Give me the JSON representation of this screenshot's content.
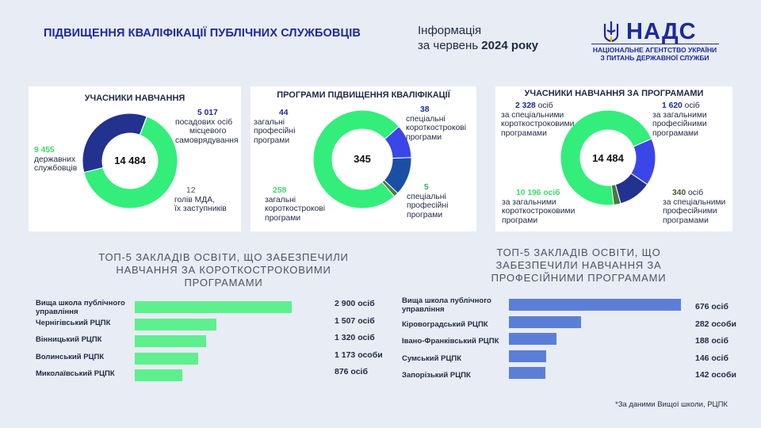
{
  "header": {
    "title": "ПІДВИЩЕННЯ КВАЛІФІКАЦІЇ ПУБЛІЧНИХ СЛУЖБОВЦІВ",
    "info_line1": "Інформація",
    "info_line2_prefix": "за червень ",
    "info_line2_bold": "2024 року",
    "logo_name": "НАДС",
    "logo_sub1": "НАЦІОНАЛЬНЕ АГЕНТСТВО УКРАЇНИ",
    "logo_sub2": "З ПИТАНЬ ДЕРЖАВНОЇ СЛУЖБИ"
  },
  "colors": {
    "green": "#33ee7a",
    "navy": "#23318f",
    "blue": "#3b46e8",
    "teal_dark": "#1b4fa3",
    "gray": "#a9b0bd",
    "olive": "#4a7a3a",
    "bar_green": "#5ef08e",
    "bar_blue": "#5b7fd6"
  },
  "panel1": {
    "title": "УЧАСНИКИ НАВЧАННЯ",
    "center": "14 484",
    "labels": {
      "civil_num": "9 455",
      "civil_text1": "державних",
      "civil_text2": "службовців",
      "local_num": "5 017",
      "local_text1": "посадових осіб",
      "local_text2": "місцевого",
      "local_text3": "самоврядування",
      "heads_num": "12",
      "heads_text1": "голів МДА,",
      "heads_text2": "їх заступників"
    }
  },
  "panel2": {
    "title": "ПРОГРАМИ ПІДВИЩЕННЯ КВАЛІФІКАЦІЇ",
    "center": "345",
    "labels": {
      "gp_num": "44",
      "gp_text1": "загальні",
      "gp_text2": "професійні",
      "gp_text3": "програми",
      "ssp_num": "38",
      "ssp_text1": "спеціальні",
      "ssp_text2": "короткострокові",
      "ssp_text3": "програми",
      "gsp_num": "258",
      "gsp_text1": "загальні",
      "gsp_text2": "короткострокові",
      "gsp_text3": "програми",
      "spp_num": "5",
      "spp_text1": "спеціальні",
      "spp_text2": "професійні",
      "spp_text3": "програми"
    }
  },
  "panel3": {
    "title": "УЧАСНИКИ НАВЧАННЯ ЗА ПРОГРАМАМИ",
    "center": "14 484",
    "labels": {
      "ssp_num": "2 328",
      "ssp_unit": " осіб",
      "ssp_text1": "за спеціальними",
      "ssp_text2": "короткостроковими",
      "ssp_text3": "програмами",
      "gp_num": "1 620",
      "gp_unit": " осіб",
      "gp_text1": "за загальними",
      "gp_text2": "професійними",
      "gp_text3": "програмами",
      "gsp_num": "10 196",
      "gsp_unit": " осіб",
      "gsp_text1": "за загальними",
      "gsp_text2": "короткостроковими",
      "gsp_text3": "програми",
      "spp_num": "340",
      "spp_unit": " осіб",
      "spp_text1": "за спеціальними",
      "spp_text2": "професійними",
      "spp_text3": "програмами"
    }
  },
  "section_left": {
    "title1": "ТОП-5 ЗАКЛАДІВ ОСВІТИ, ЩО ЗАБЕЗПЕЧИЛИ",
    "title2": "НАВЧАННЯ ЗА КОРОТКОСТРОКОВИМИ",
    "title3": "ПРОГРАМАМИ"
  },
  "section_right": {
    "title1": "ТОП-5 ЗАКЛАДІВ ОСВІТИ, ЩО",
    "title2": "ЗАБЕЗПЕЧИЛИ НАВЧАННЯ ЗА",
    "title3": "ПРОФЕСІЙНИМИ ПРОГРАМАМИ"
  },
  "footnote": "*За даними Вищої школи, РЦПК",
  "chart_data": [
    {
      "type": "pie",
      "title": "УЧАСНИКИ НАВЧАННЯ",
      "center_label": "14 484",
      "categories": [
        "державних службовців",
        "посадових осіб місцевого самоврядування",
        "голів МДА, їх заступників"
      ],
      "values": [
        9455,
        5017,
        12
      ],
      "colors": [
        "#33ee7a",
        "#23318f",
        "#a9b0bd"
      ]
    },
    {
      "type": "pie",
      "title": "ПРОГРАМИ ПІДВИЩЕННЯ КВАЛІФІКАЦІЇ",
      "center_label": "345",
      "categories": [
        "загальні короткострокові програми",
        "спеціальні короткострокові програми",
        "загальні професійні програми",
        "спеціальні професійні програми"
      ],
      "values": [
        258,
        38,
        44,
        5
      ],
      "colors": [
        "#33ee7a",
        "#3b46e8",
        "#1b4fa3",
        "#4a7a3a"
      ]
    },
    {
      "type": "pie",
      "title": "УЧАСНИКИ НАВЧАННЯ ЗА ПРОГРАМАМИ",
      "center_label": "14 484",
      "categories": [
        "за загальними короткостроковими програми",
        "за спеціальними короткостроковими програмами",
        "за загальними професійними програмами",
        "за спеціальними професійними програмами"
      ],
      "values": [
        10196,
        2328,
        1620,
        340
      ],
      "colors": [
        "#33ee7a",
        "#3b46e8",
        "#23318f",
        "#4a7a3a"
      ]
    },
    {
      "type": "bar",
      "orientation": "horizontal",
      "categories": [
        "Вища школа публічного управління",
        "Чернігівський РЦПК",
        "Вінницький РЦПК",
        "Волинський РЦПК",
        "Миколаївський РЦПК"
      ],
      "values": [
        2900,
        1507,
        1320,
        1173,
        876
      ],
      "value_labels": [
        "2 900 осіб",
        "1 507 осіб",
        "1 320 осіб",
        "1 173 особи",
        "876 осіб"
      ],
      "xlim": [
        0,
        2900
      ]
    },
    {
      "type": "bar",
      "orientation": "horizontal",
      "categories": [
        "Вища школа публічного управління",
        "Кіровоградський РЦПК",
        "Івано-Франківський РЦПК",
        "Сумський РЦПК",
        "Запорізький РЦПК"
      ],
      "values": [
        676,
        282,
        188,
        146,
        142
      ],
      "value_labels": [
        "676 осіб",
        "282 особи",
        "188 осіб",
        "146 осіб",
        "142 особи"
      ],
      "xlim": [
        0,
        676
      ]
    }
  ]
}
